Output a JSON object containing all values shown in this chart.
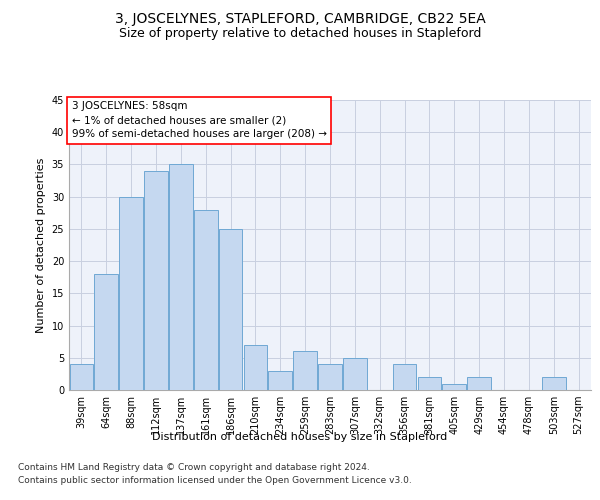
{
  "title": "3, JOSCELYNES, STAPLEFORD, CAMBRIDGE, CB22 5EA",
  "subtitle": "Size of property relative to detached houses in Stapleford",
  "xlabel": "Distribution of detached houses by size in Stapleford",
  "ylabel": "Number of detached properties",
  "categories": [
    "39sqm",
    "64sqm",
    "88sqm",
    "112sqm",
    "137sqm",
    "161sqm",
    "186sqm",
    "210sqm",
    "234sqm",
    "259sqm",
    "283sqm",
    "307sqm",
    "332sqm",
    "356sqm",
    "381sqm",
    "405sqm",
    "429sqm",
    "454sqm",
    "478sqm",
    "503sqm",
    "527sqm"
  ],
  "values": [
    4,
    18,
    30,
    34,
    35,
    28,
    25,
    7,
    3,
    6,
    4,
    5,
    0,
    4,
    2,
    1,
    2,
    0,
    0,
    2,
    0
  ],
  "bar_color": "#c5d8f0",
  "bar_edge_color": "#6fa8d4",
  "ylim": [
    0,
    45
  ],
  "yticks": [
    0,
    5,
    10,
    15,
    20,
    25,
    30,
    35,
    40,
    45
  ],
  "annotation_line1": "3 JOSCELYNES: 58sqm",
  "annotation_line2": "← 1% of detached houses are smaller (2)",
  "annotation_line3": "99% of semi-detached houses are larger (208) →",
  "annotation_box_color": "white",
  "annotation_edge_color": "red",
  "footnote1": "Contains HM Land Registry data © Crown copyright and database right 2024.",
  "footnote2": "Contains public sector information licensed under the Open Government Licence v3.0.",
  "background_color": "#eef2fa",
  "grid_color": "#c8cfe0",
  "title_fontsize": 10,
  "subtitle_fontsize": 9,
  "axis_label_fontsize": 8,
  "tick_fontsize": 7,
  "annotation_fontsize": 7.5,
  "footnote_fontsize": 6.5
}
